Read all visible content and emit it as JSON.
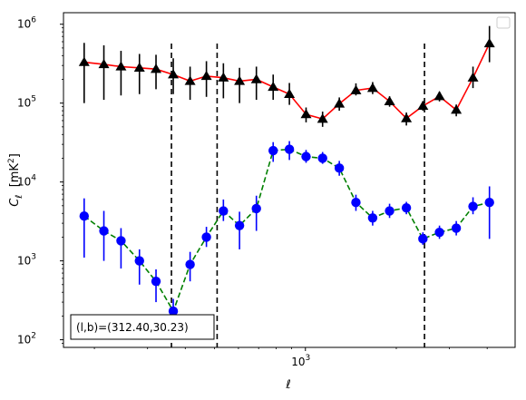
{
  "chart_data": {
    "type": "line",
    "xscale": "log",
    "yscale": "log",
    "xlim": [
      158,
      4950
    ],
    "ylim": [
      80,
      1400000
    ],
    "xlabel": "ℓ",
    "ylabel": "C_ℓ  [mK²]",
    "x_ticks": [
      {
        "value": 1000,
        "base": "10",
        "exp": "3"
      }
    ],
    "y_ticks": [
      {
        "value": 100,
        "base": "10",
        "exp": "2"
      },
      {
        "value": 1000,
        "base": "10",
        "exp": "3"
      },
      {
        "value": 10000,
        "base": "10",
        "exp": "4"
      },
      {
        "value": 100000,
        "base": "10",
        "exp": "5"
      },
      {
        "value": 1000000,
        "base": "10",
        "exp": "6"
      }
    ],
    "vlines": [
      360,
      510,
      2480
    ],
    "legend": "upper right",
    "annotation": "(l,b)=(312.40,30.23)",
    "series": [
      {
        "color": "#ff0000",
        "line_style": "solid",
        "marker": "triangle",
        "marker_color": "#000000",
        "x": [
          185,
          215,
          245,
          282,
          320,
          365,
          415,
          470,
          535,
          605,
          688,
          782,
          885,
          1005,
          1140,
          1295,
          1470,
          1670,
          1900,
          2160,
          2450,
          2780,
          3160,
          3590,
          4070
        ],
        "y": [
          330000,
          310000,
          290000,
          280000,
          270000,
          230000,
          190000,
          220000,
          210000,
          190000,
          200000,
          160000,
          130000,
          72000,
          63000,
          98000,
          145000,
          155000,
          105000,
          64000,
          92000,
          122000,
          82000,
          210000,
          570000
        ],
        "y_low": [
          100000,
          110000,
          125000,
          130000,
          150000,
          130000,
          110000,
          120000,
          115000,
          100000,
          110000,
          110000,
          95000,
          57000,
          50000,
          80000,
          125000,
          130000,
          90000,
          52000,
          80000,
          105000,
          68000,
          155000,
          330000
        ],
        "y_high": [
          580000,
          540000,
          460000,
          420000,
          410000,
          370000,
          290000,
          340000,
          320000,
          280000,
          290000,
          230000,
          180000,
          88000,
          78000,
          118000,
          178000,
          185000,
          122000,
          76000,
          106000,
          140000,
          96000,
          290000,
          950000
        ]
      },
      {
        "color": "#008000",
        "line_style": "dashed",
        "marker": "circle",
        "marker_color": "#0000ff",
        "x": [
          185,
          215,
          245,
          282,
          320,
          365,
          415,
          470,
          535,
          605,
          688,
          782,
          885,
          1005,
          1140,
          1295,
          1470,
          1670,
          1900,
          2160,
          2450,
          2780,
          3160,
          3590,
          4070
        ],
        "y": [
          3700,
          2400,
          1800,
          1000,
          550,
          230,
          900,
          2000,
          4300,
          2800,
          4600,
          25000,
          26000,
          21000,
          20000,
          15000,
          5500,
          3500,
          4300,
          4700,
          1900,
          2300,
          2600,
          4900,
          5500
        ],
        "y_low": [
          1100,
          1000,
          800,
          500,
          300,
          110,
          550,
          1500,
          3200,
          1400,
          2400,
          18000,
          19000,
          17500,
          17000,
          12000,
          4300,
          2800,
          3500,
          3900,
          1600,
          1900,
          2100,
          3900,
          1900
        ],
        "y_high": [
          6200,
          4300,
          2600,
          1400,
          780,
          330,
          1300,
          2700,
          6000,
          4200,
          6700,
          32000,
          33000,
          25500,
          24000,
          18500,
          6900,
          4300,
          5300,
          5600,
          2300,
          2800,
          3200,
          6400,
          8800
        ]
      }
    ]
  }
}
